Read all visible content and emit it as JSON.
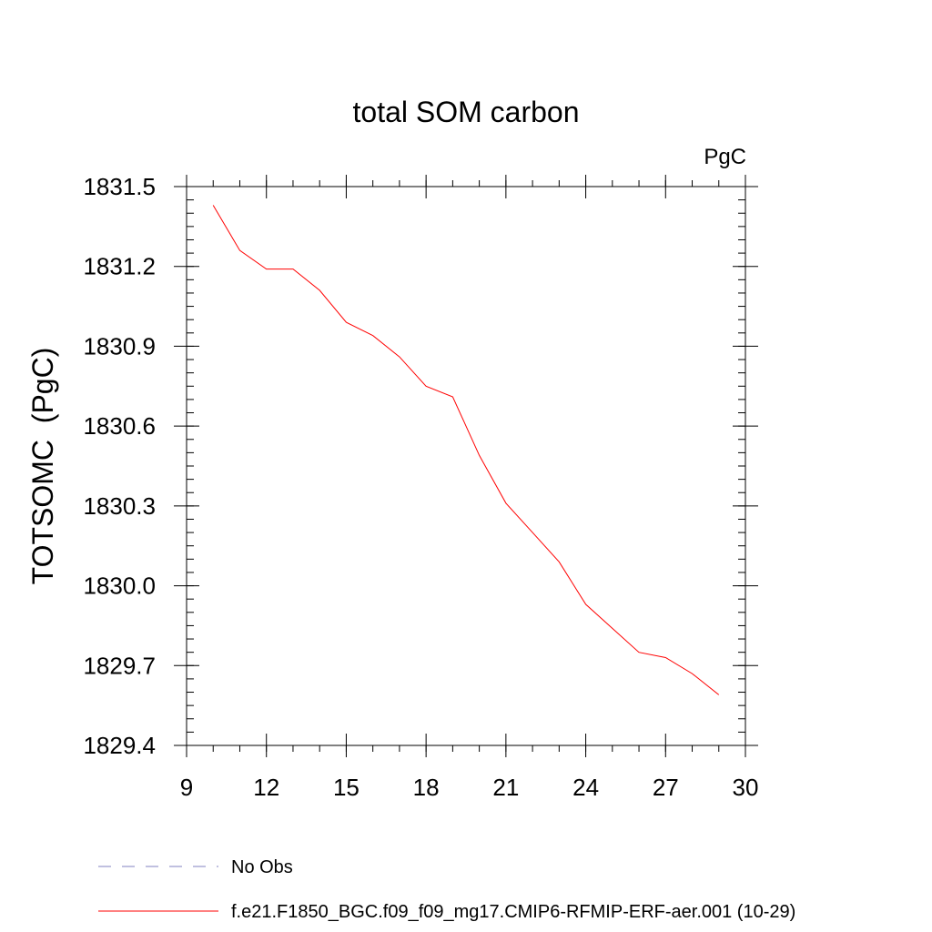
{
  "chart_data": {
    "type": "line",
    "title": "total SOM carbon",
    "units_label": "PgC",
    "ylabel": "TOTSOMC  (PgC)",
    "xlabel": "",
    "xlim": [
      9,
      30
    ],
    "ylim": [
      1829.4,
      1831.5
    ],
    "x_ticks": [
      9,
      12,
      15,
      18,
      21,
      24,
      27,
      30
    ],
    "y_ticks": [
      1829.4,
      1829.7,
      1830.0,
      1830.3,
      1830.6,
      1830.9,
      1831.2,
      1831.5
    ],
    "x_tick_labels": [
      "9",
      "12",
      "15",
      "18",
      "21",
      "24",
      "27",
      "30"
    ],
    "y_tick_labels": [
      "1829.4",
      "1829.7",
      "1830.0",
      "1830.3",
      "1830.6",
      "1830.9",
      "1831.2",
      "1831.5"
    ],
    "x_minor_step": 1,
    "y_minor_step": 0.05,
    "grid": false,
    "series": [
      {
        "name": "f.e21.F1850_BGC.f09_f09_mg17.CMIP6-RFMIP-ERF-aer.001 (10-29)",
        "color": "#ff0000",
        "style": "solid",
        "x": [
          10,
          11,
          12,
          13,
          14,
          15,
          16,
          17,
          18,
          19,
          20,
          21,
          22,
          23,
          24,
          25,
          26,
          27,
          28,
          29
        ],
        "y": [
          1831.43,
          1831.26,
          1831.19,
          1831.19,
          1831.11,
          1830.99,
          1830.94,
          1830.86,
          1830.75,
          1830.71,
          1830.49,
          1830.31,
          1830.2,
          1830.09,
          1829.93,
          1829.84,
          1829.75,
          1829.73,
          1829.67,
          1829.59
        ]
      }
    ],
    "legend": [
      {
        "label": "No Obs",
        "color": "#8080c0",
        "style": "dashed"
      },
      {
        "label": "f.e21.F1850_BGC.f09_f09_mg17.CMIP6-RFMIP-ERF-aer.001 (10-29)",
        "color": "#ff0000",
        "style": "solid"
      }
    ],
    "legend_position": "bottom"
  }
}
